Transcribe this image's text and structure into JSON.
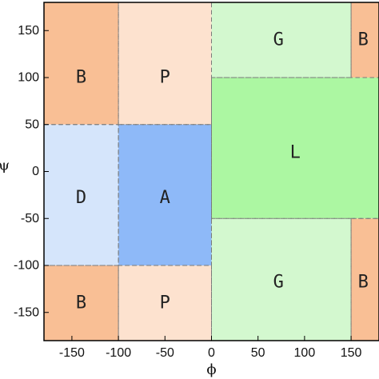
{
  "chart_data": {
    "type": "heatmap",
    "title": "",
    "xlabel": "ϕ",
    "ylabel": "ψ",
    "xlim": [
      -180,
      180
    ],
    "ylim": [
      -180,
      180
    ],
    "xticks": [
      -150,
      -100,
      -50,
      0,
      50,
      100,
      150
    ],
    "yticks": [
      150,
      100,
      50,
      0,
      -50,
      -100,
      -150
    ],
    "x_tick_labels": [
      "-150",
      "-100",
      "-50",
      "0",
      "50",
      "100",
      "150"
    ],
    "y_tick_labels": [
      "150",
      "100",
      "50",
      "0",
      "-50",
      "-100",
      "-150"
    ],
    "grid": false,
    "colors": {
      "B": "#f9bf95",
      "P": "#fde2cf",
      "G": "#d3f8cf",
      "L": "#acf7a2",
      "D": "#d5e5fb",
      "A": "#8eb9f8",
      "boundary": "#7a7a7a"
    },
    "regions": [
      {
        "id": "B-top-left",
        "label": "B",
        "x": [
          -180,
          -100
        ],
        "y": [
          50,
          180
        ],
        "label_at": [
          -140,
          100
        ]
      },
      {
        "id": "P-top",
        "label": "P",
        "x": [
          -100,
          0
        ],
        "y": [
          50,
          180
        ],
        "label_at": [
          -50,
          100
        ]
      },
      {
        "id": "G-top",
        "label": "G",
        "x": [
          0,
          150
        ],
        "y": [
          100,
          180
        ],
        "label_at": [
          72,
          140
        ]
      },
      {
        "id": "B-top-right",
        "label": "B",
        "x": [
          150,
          180
        ],
        "y": [
          100,
          180
        ],
        "label_at": [
          163,
          140
        ]
      },
      {
        "id": "L",
        "label": "L",
        "x": [
          0,
          180
        ],
        "y": [
          -50,
          100
        ],
        "label_at": [
          90,
          20
        ]
      },
      {
        "id": "D",
        "label": "D",
        "x": [
          -180,
          -100
        ],
        "y": [
          -100,
          50
        ],
        "label_at": [
          -140,
          -28
        ]
      },
      {
        "id": "A",
        "label": "A",
        "x": [
          -100,
          0
        ],
        "y": [
          -100,
          50
        ],
        "label_at": [
          -50,
          -28
        ]
      },
      {
        "id": "G-bottom",
        "label": "G",
        "x": [
          0,
          150
        ],
        "y": [
          -180,
          -50
        ],
        "label_at": [
          72,
          -118
        ]
      },
      {
        "id": "B-bottom-right",
        "label": "B",
        "x": [
          150,
          180
        ],
        "y": [
          -180,
          -50
        ],
        "label_at": [
          163,
          -118
        ]
      },
      {
        "id": "B-bottom-left",
        "label": "B",
        "x": [
          -180,
          -100
        ],
        "y": [
          -180,
          -100
        ],
        "label_at": [
          -140,
          -140
        ]
      },
      {
        "id": "P-bottom",
        "label": "P",
        "x": [
          -100,
          0
        ],
        "y": [
          -180,
          -100
        ],
        "label_at": [
          -50,
          -140
        ]
      }
    ]
  }
}
